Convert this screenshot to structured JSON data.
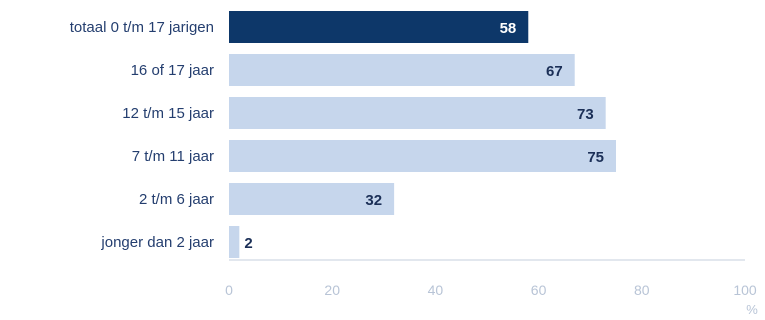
{
  "chart_data": {
    "type": "bar",
    "orientation": "horizontal",
    "categories": [
      "totaal 0 t/m 17 jarigen",
      "16 of 17 jaar",
      "12 t/m 15 jaar",
      "7 t/m 11 jaar",
      "2 t/m 6 jaar",
      "jonger dan 2 jaar"
    ],
    "values": [
      58,
      67,
      73,
      75,
      32,
      2
    ],
    "highlight_index": 0,
    "xlim": [
      0,
      100
    ],
    "xticks": [
      0,
      20,
      40,
      60,
      80,
      100
    ],
    "xunit": "%",
    "grid": false,
    "colors": {
      "highlight_bar": "#0d3769",
      "bar": "#c6d6ec",
      "highlight_label": "#ffffff",
      "label": "#1b2f57"
    }
  }
}
